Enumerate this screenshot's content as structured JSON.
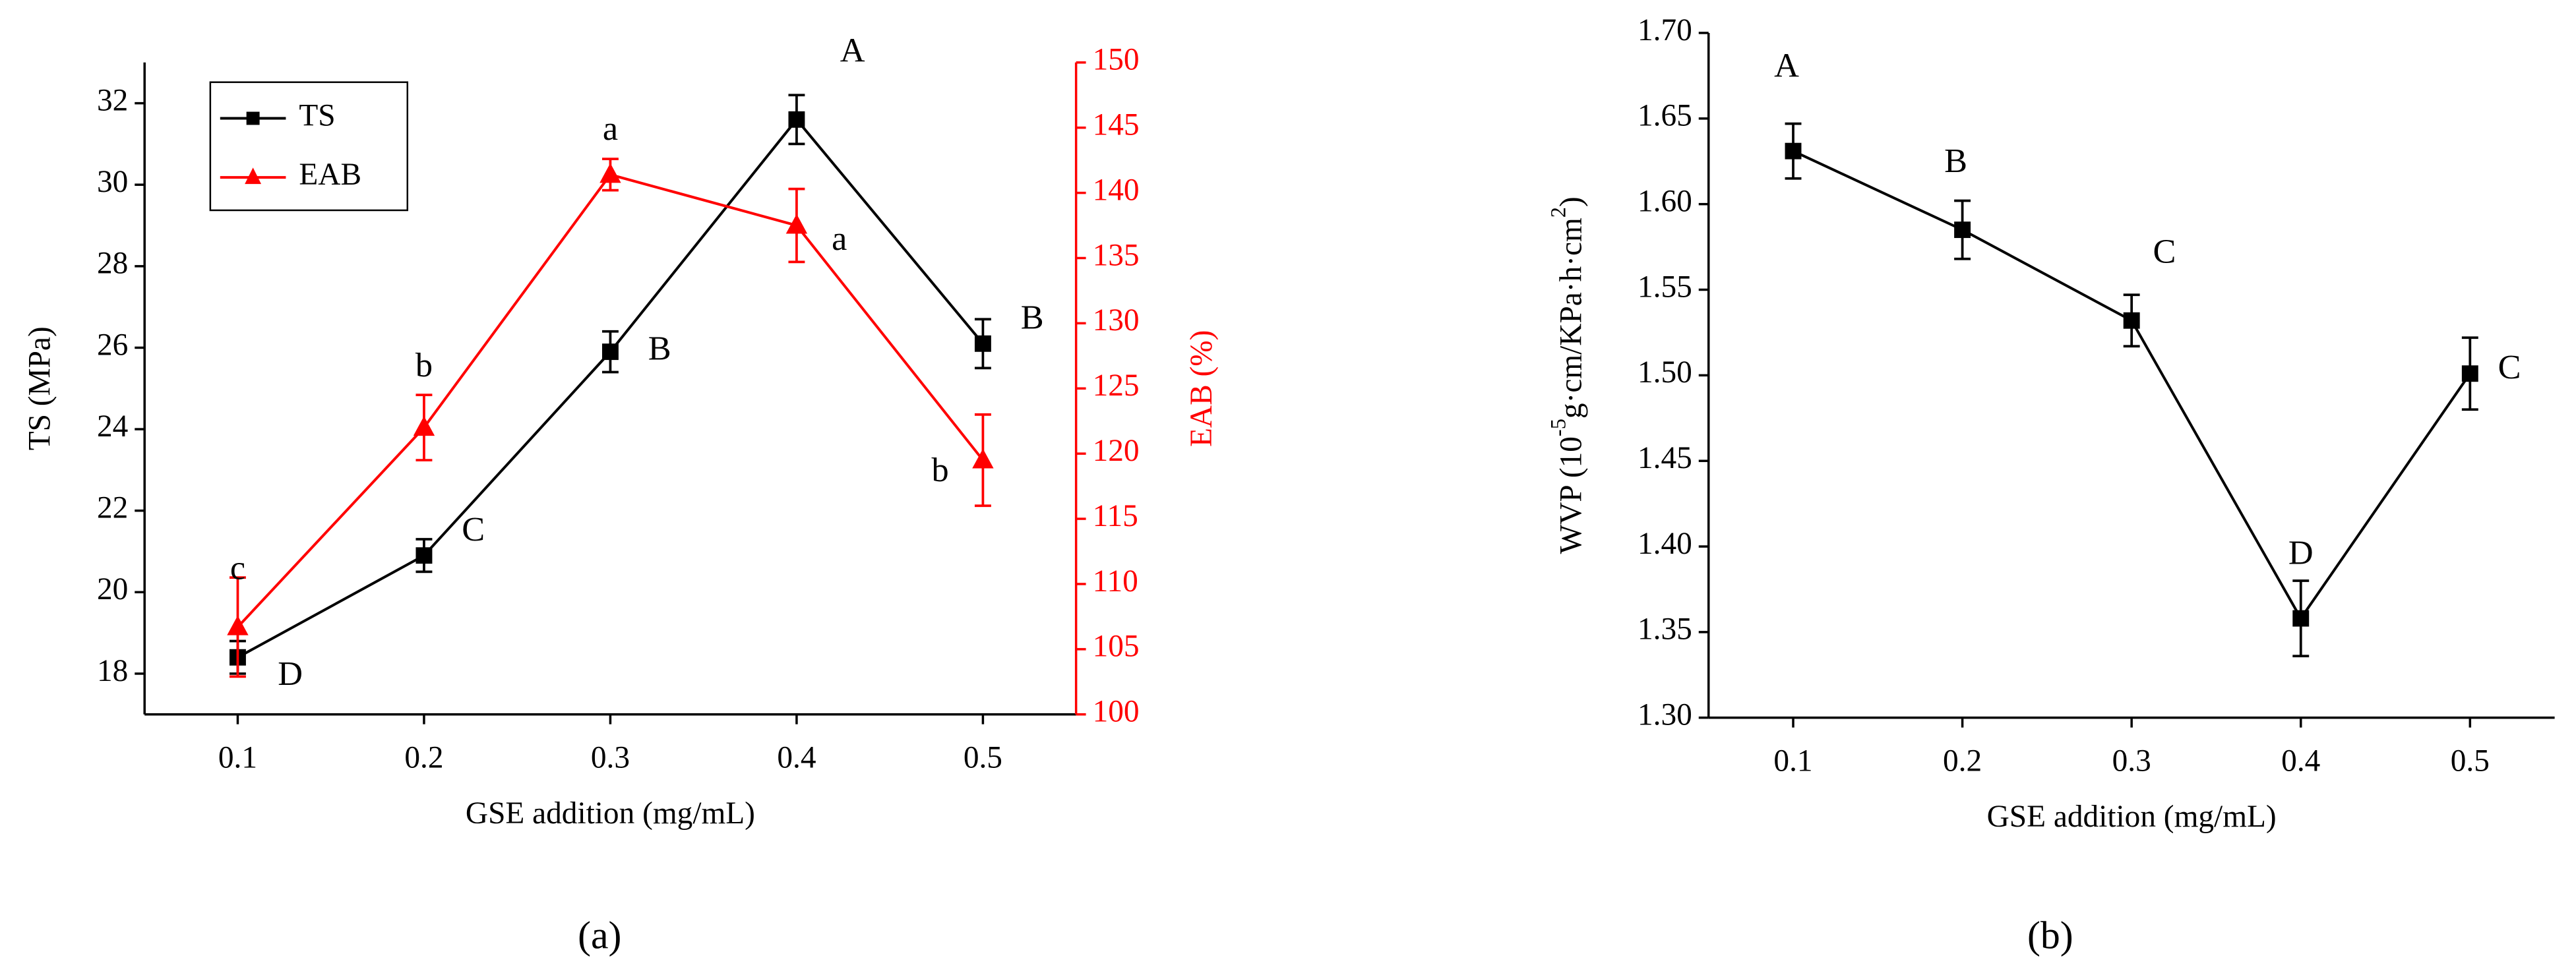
{
  "chart_data": [
    {
      "type": "line",
      "caption": "(a)",
      "xlabel": "GSE addition (mg/mL)",
      "ylabel": "TS (MPa)",
      "y2label": "EAB (%)",
      "x": [
        0.1,
        0.2,
        0.3,
        0.4,
        0.5
      ],
      "xlim": [
        0.05,
        0.55
      ],
      "xticks": [
        0.1,
        0.2,
        0.3,
        0.4,
        0.5
      ],
      "ylim": [
        17,
        33
      ],
      "yticks": [
        18,
        20,
        22,
        24,
        26,
        28,
        30,
        32
      ],
      "y2lim": [
        100,
        150
      ],
      "y2ticks": [
        100,
        105,
        110,
        115,
        120,
        125,
        130,
        135,
        140,
        145,
        150
      ],
      "legend": "upper left",
      "series": [
        {
          "name": "TS",
          "color": "#000000",
          "marker": "square",
          "values": [
            18.4,
            20.9,
            25.9,
            31.6,
            26.1
          ],
          "errors": [
            0.4,
            0.4,
            0.5,
            0.6,
            0.6
          ],
          "letters": [
            "D",
            "C",
            "B",
            "A",
            "B"
          ]
        },
        {
          "name": "EAB",
          "color": "#ff0000",
          "marker": "triangle",
          "axis": "y2",
          "values": [
            106.7,
            122.0,
            141.4,
            137.5,
            119.5
          ],
          "errors": [
            3.8,
            2.5,
            1.2,
            2.8,
            3.5
          ],
          "letters": [
            "c",
            "b",
            "a",
            "a",
            "b"
          ]
        }
      ]
    },
    {
      "type": "line",
      "caption": "(b)",
      "xlabel": "GSE addition (mg/mL)",
      "ylabel": [
        "WVP (10",
        "-5",
        "g·cm/KPa·h·cm",
        "2",
        ")"
      ],
      "x": [
        0.1,
        0.2,
        0.3,
        0.4,
        0.5
      ],
      "xlim": [
        0.05,
        0.55
      ],
      "xticks": [
        0.1,
        0.2,
        0.3,
        0.4,
        0.5
      ],
      "ylim": [
        1.3,
        1.7
      ],
      "yticks": [
        {
          "value": 1.3,
          "label": "1.30"
        },
        {
          "value": 1.35,
          "label": "1.35"
        },
        {
          "value": 1.4,
          "label": "1.40"
        },
        {
          "value": 1.45,
          "label": "1.45"
        },
        {
          "value": 1.5,
          "label": "1.50"
        },
        {
          "value": 1.55,
          "label": "1.55"
        },
        {
          "value": 1.6,
          "label": "1.60"
        },
        {
          "value": 1.65,
          "label": "1.65"
        },
        {
          "value": 1.7,
          "label": "1.70"
        }
      ],
      "series": [
        {
          "color": "#000000",
          "marker": "square",
          "values": [
            1.631,
            1.585,
            1.532,
            1.358,
            1.501
          ],
          "errors": [
            0.016,
            0.017,
            0.015,
            0.022,
            0.021
          ],
          "letters": [
            "A",
            "B",
            "C",
            "D",
            "C"
          ]
        }
      ]
    }
  ]
}
